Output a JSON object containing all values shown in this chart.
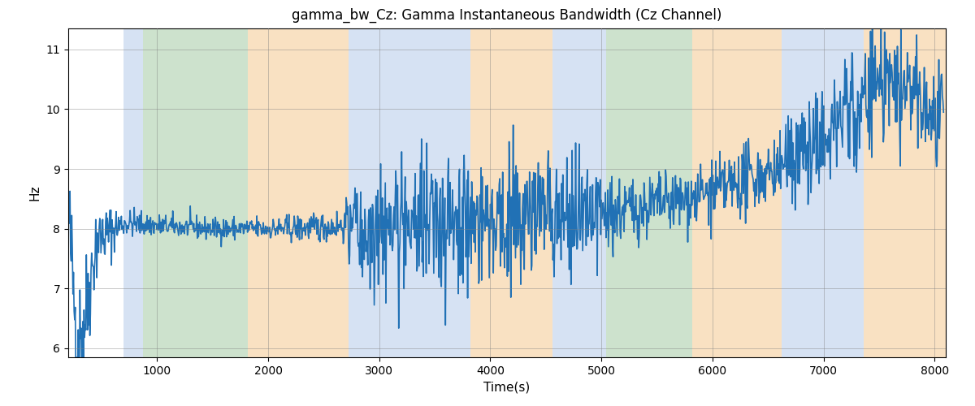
{
  "title": "gamma_bw_Cz: Gamma Instantaneous Bandwidth (Cz Channel)",
  "xlabel": "Time(s)",
  "ylabel": "Hz",
  "xlim": [
    200,
    8100
  ],
  "ylim": [
    5.85,
    11.35
  ],
  "xticks": [
    1000,
    2000,
    3000,
    4000,
    5000,
    6000,
    7000,
    8000
  ],
  "yticks": [
    6,
    7,
    8,
    9,
    10,
    11
  ],
  "line_color": "#2171b5",
  "line_width": 1.2,
  "background_color": "#ffffff",
  "bands": [
    {
      "xmin": 700,
      "xmax": 870,
      "color": "#aec6e8",
      "alpha": 0.5
    },
    {
      "xmin": 870,
      "xmax": 1820,
      "color": "#90c090",
      "alpha": 0.45
    },
    {
      "xmin": 1820,
      "xmax": 2720,
      "color": "#f5c990",
      "alpha": 0.55
    },
    {
      "xmin": 2720,
      "xmax": 3820,
      "color": "#aec6e8",
      "alpha": 0.5
    },
    {
      "xmin": 3820,
      "xmax": 4560,
      "color": "#f5c990",
      "alpha": 0.55
    },
    {
      "xmin": 4560,
      "xmax": 5040,
      "color": "#aec6e8",
      "alpha": 0.5
    },
    {
      "xmin": 5040,
      "xmax": 5820,
      "color": "#90c090",
      "alpha": 0.45
    },
    {
      "xmin": 5820,
      "xmax": 6620,
      "color": "#f5c990",
      "alpha": 0.55
    },
    {
      "xmin": 6620,
      "xmax": 7360,
      "color": "#aec6e8",
      "alpha": 0.5
    },
    {
      "xmin": 7360,
      "xmax": 8200,
      "color": "#f5c990",
      "alpha": 0.55
    }
  ],
  "figsize": [
    12.0,
    5.0
  ],
  "dpi": 100,
  "seed": 42,
  "n_points": 1500,
  "t_start": 200,
  "t_end": 8080
}
